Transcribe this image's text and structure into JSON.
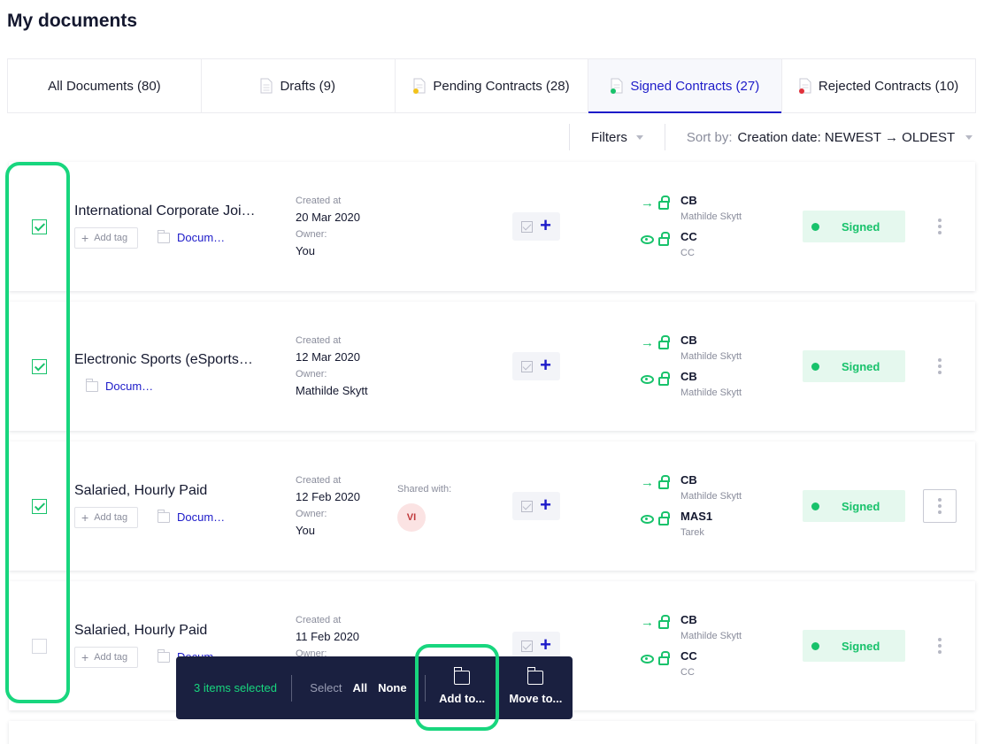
{
  "page": {
    "title": "My documents"
  },
  "tabs": [
    {
      "label": "All Documents (80)",
      "icon": "none",
      "active": false
    },
    {
      "label": "Drafts (9)",
      "icon": "document-icon",
      "active": false
    },
    {
      "label": "Pending Contracts (28)",
      "icon": "document-pending-icon",
      "active": false
    },
    {
      "label": "Signed Contracts (27)",
      "icon": "document-signed-icon",
      "active": true
    },
    {
      "label": "Rejected Contracts (10)",
      "icon": "document-rejected-icon",
      "active": false
    }
  ],
  "toolbar": {
    "filters_label": "Filters",
    "sort_prefix": "Sort by:",
    "sort_value": "Creation date: NEWEST → OLDEST"
  },
  "labels": {
    "created_at": "Created at",
    "owner": "Owner:",
    "shared_with": "Shared with:",
    "add_tag": "Add tag",
    "status": "Signed"
  },
  "documents": [
    {
      "title": "International Corporate Joi…",
      "checked": true,
      "has_tag": true,
      "folder": "Docum…",
      "created": "20 Mar 2020",
      "owner": "You",
      "signers": [
        {
          "type": "signer",
          "code": "CB",
          "name": "Mathilde Skytt"
        },
        {
          "type": "viewer",
          "code": "CC",
          "name": "CC"
        }
      ]
    },
    {
      "title": "Electronic Sports (eSports…",
      "checked": true,
      "has_tag": false,
      "folder": "Docum…",
      "created": "12 Mar 2020",
      "owner": "Mathilde Skytt",
      "signers": [
        {
          "type": "signer",
          "code": "CB",
          "name": "Mathilde Skytt"
        },
        {
          "type": "viewer",
          "code": "CB",
          "name": "Mathilde Skytt"
        }
      ]
    },
    {
      "title": "Salaried, Hourly Paid",
      "checked": true,
      "has_tag": true,
      "folder": "Docum…",
      "created": "12 Feb 2020",
      "owner": "You",
      "shared_with": "VI",
      "signers": [
        {
          "type": "signer",
          "code": "CB",
          "name": "Mathilde Skytt"
        },
        {
          "type": "viewer",
          "code": "MAS1",
          "name": "Tarek"
        }
      ]
    },
    {
      "title": "Salaried, Hourly Paid",
      "checked": false,
      "has_tag": true,
      "folder": "Docum…",
      "created": "11 Feb 2020",
      "owner": "",
      "signers": [
        {
          "type": "signer",
          "code": "CB",
          "name": "Mathilde Skytt"
        },
        {
          "type": "viewer",
          "code": "CC",
          "name": "CC"
        }
      ]
    }
  ],
  "action_bar": {
    "selected_count": "3 items selected",
    "select_label": "Select",
    "all_label": "All",
    "none_label": "None",
    "add_to_label": "Add to...",
    "move_to_label": "Move to..."
  },
  "colors": {
    "accent_blue": "#1d1bc9",
    "success_green": "#18c26b",
    "highlight_green": "#18d67e",
    "action_bar_bg": "#1a2040"
  }
}
